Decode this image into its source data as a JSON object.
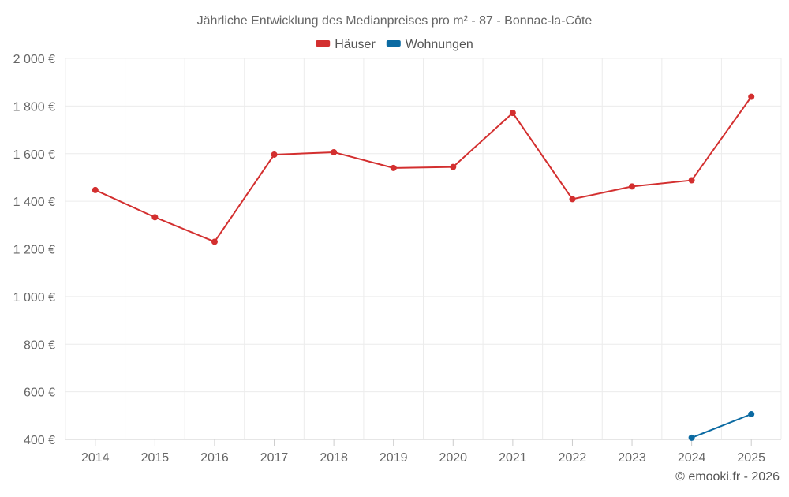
{
  "chart_data": {
    "type": "line",
    "title": "Jährliche Entwicklung des Medianpreises pro m² - 87 - Bonnac-la-Côte",
    "categories": [
      "2014",
      "2015",
      "2016",
      "2017",
      "2018",
      "2019",
      "2020",
      "2021",
      "2022",
      "2023",
      "2024",
      "2025"
    ],
    "series": [
      {
        "name": "Häuser",
        "color": "#d32f2f",
        "values": [
          1447,
          1333,
          1230,
          1596,
          1606,
          1540,
          1544,
          1771,
          1409,
          1462,
          1488,
          1839
        ]
      },
      {
        "name": "Wohnungen",
        "color": "#0b6aa2",
        "values": [
          null,
          null,
          null,
          null,
          null,
          null,
          null,
          null,
          null,
          null,
          407,
          506
        ]
      }
    ],
    "ylim": [
      400,
      2000
    ],
    "yticks": [
      400,
      600,
      800,
      1000,
      1200,
      1400,
      1600,
      1800,
      2000
    ],
    "ytick_labels": [
      "400 €",
      "600 €",
      "800 €",
      "1 000 €",
      "1 200 €",
      "1 400 €",
      "1 600 €",
      "1 800 €",
      "2 000 €"
    ],
    "xlabel": "",
    "ylabel": "",
    "grid": true,
    "legend_position": "top-center"
  },
  "credit": "© emooki.fr - 2026"
}
